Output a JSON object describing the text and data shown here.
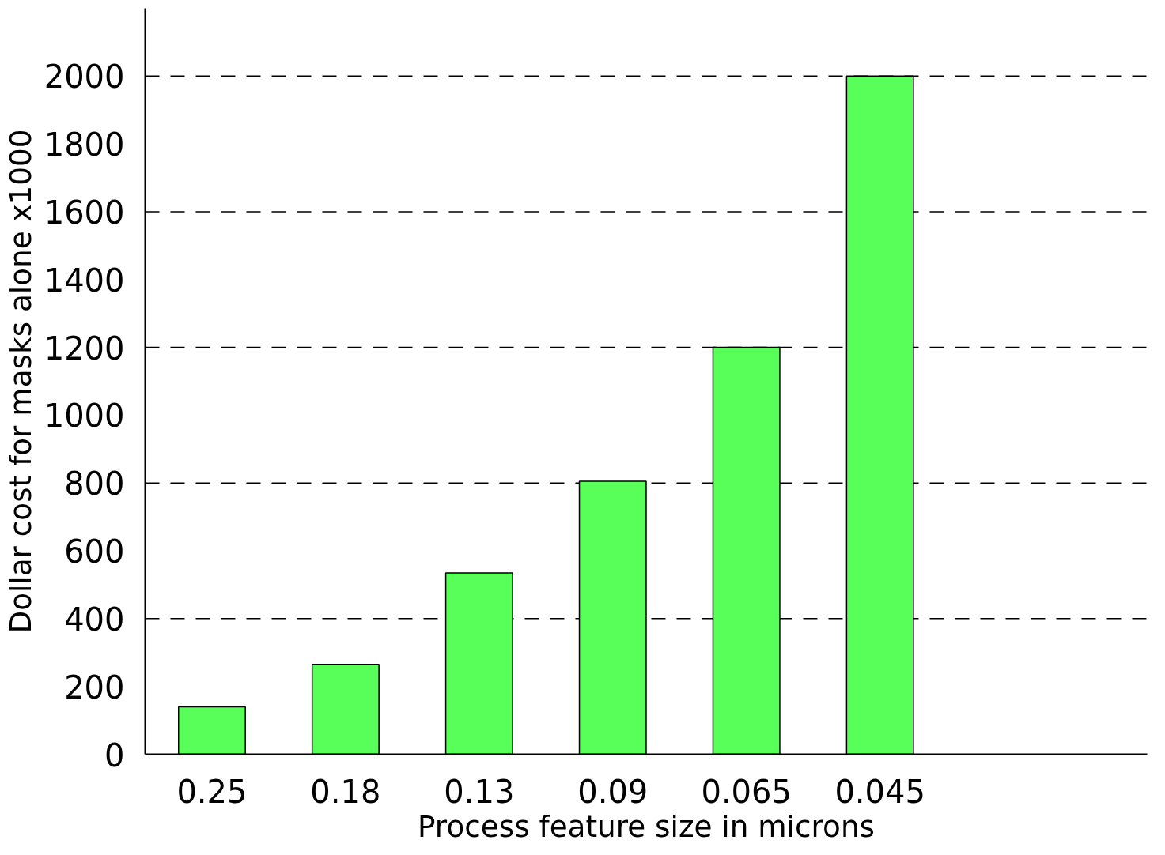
{
  "chart_data": {
    "type": "bar",
    "xlabel": "Process feature size in microns",
    "ylabel": "Dollar cost for masks alone x1000",
    "categories": [
      "0.25",
      "0.18",
      "0.13",
      "0.09",
      "0.065",
      "0.045"
    ],
    "values": [
      140,
      265,
      535,
      805,
      1200,
      2000
    ],
    "color": "#58ff58",
    "ylim": [
      0,
      2200
    ],
    "yticks": [
      0,
      200,
      400,
      600,
      800,
      1000,
      1200,
      1400,
      1600,
      1800,
      2000
    ],
    "grid": false,
    "ref_lines": [
      {
        "axis": "y",
        "value": 400,
        "line_style": "dashed",
        "color": "#000000"
      },
      {
        "axis": "y",
        "value": 800,
        "line_style": "dashed",
        "color": "#000000"
      },
      {
        "axis": "y",
        "value": 1200,
        "line_style": "dashed",
        "color": "#000000"
      },
      {
        "axis": "y",
        "value": 1600,
        "line_style": "dashed",
        "color": "#000000"
      },
      {
        "axis": "y",
        "value": 2000,
        "line_style": "dashed",
        "color": "#000000"
      }
    ]
  }
}
